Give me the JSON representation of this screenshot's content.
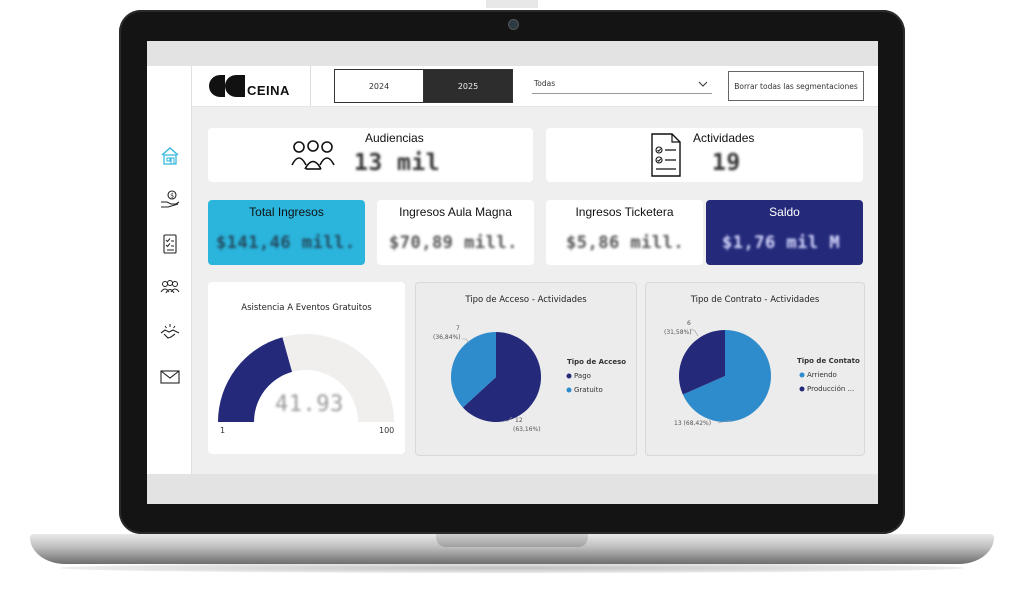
{
  "brand": {
    "logo_text": "CEINA"
  },
  "filters": {
    "years": [
      "2024",
      "2025"
    ],
    "selected_year": "2025",
    "dropdown_value": "Todas",
    "clear_button": "Borrar todas las segmentaciones"
  },
  "sidebar": {
    "items": [
      {
        "icon": "home-icon"
      },
      {
        "icon": "money-hand-icon"
      },
      {
        "icon": "checklist-icon"
      },
      {
        "icon": "people-icon"
      },
      {
        "icon": "handshake-icon"
      },
      {
        "icon": "mail-icon"
      }
    ]
  },
  "kpis": {
    "audiencias": {
      "label": "Audiencias",
      "value": "13 mil"
    },
    "actividades": {
      "label": "Actividades",
      "value": "19"
    },
    "total_ingresos": {
      "label": "Total Ingresos",
      "value": "$141,46 mill."
    },
    "ingresos_aula_magna": {
      "label": "Ingresos Aula Magna",
      "value": "$70,89 mill."
    },
    "ingresos_ticketera": {
      "label": "Ingresos Ticketera",
      "value": "$5,86 mill."
    },
    "saldo": {
      "label": "Saldo",
      "value": "$1,76 mil M"
    }
  },
  "colors": {
    "accent_cyan": "#2bb4dc",
    "navy": "#24297a",
    "pie_blue": "#2e8bcc",
    "gauge_bg": "#f0efed"
  },
  "chart_data": [
    {
      "type": "gauge",
      "title": "Asistencia A Eventos Gratuitos",
      "value": 41.93,
      "value_label": "41.93",
      "min": 1,
      "max": 100,
      "min_label": "1",
      "max_label": "100"
    },
    {
      "type": "pie",
      "title": "Tipo de Acceso - Actividades",
      "legend_title": "Tipo de Acceso",
      "legend_position": "right",
      "slices": [
        {
          "name": "Pago",
          "value": 12,
          "label": "12",
          "pct_label": "(63,16%)",
          "color": "#24297a"
        },
        {
          "name": "Gratuito",
          "value": 7,
          "label": "7",
          "pct_label": "(36,84%)",
          "color": "#2e8bcc"
        }
      ]
    },
    {
      "type": "pie",
      "title": "Tipo de Contrato - Actividades",
      "legend_title": "Tipo de Contato",
      "legend_position": "right",
      "slices": [
        {
          "name": "Arriendo",
          "value": 13,
          "label": "13 (68,42%)",
          "pct_label": "",
          "color": "#2e8bcc"
        },
        {
          "name": "Producción ...",
          "value": 6,
          "label": "6",
          "pct_label": "(31,58%)",
          "color": "#24297a"
        }
      ]
    }
  ]
}
